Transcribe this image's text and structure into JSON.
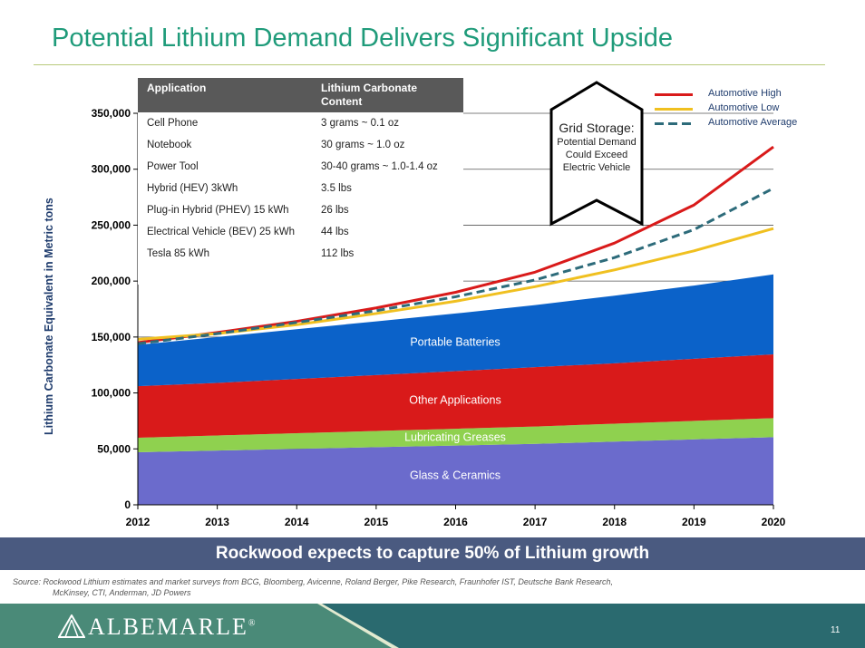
{
  "title": "Potential Lithium Demand Delivers Significant Upside",
  "chart_data": {
    "type": "area",
    "ylabel": "Lithium Carbonate Equivalent in Metric tons",
    "ylim": [
      0,
      350000
    ],
    "yticks": [
      0,
      50000,
      100000,
      150000,
      200000,
      250000,
      300000,
      350000
    ],
    "ytick_labels": [
      "0",
      "50,000",
      "100,000",
      "150,000",
      "200,000",
      "250,000",
      "300,000",
      "350,000"
    ],
    "x": [
      2012,
      2013,
      2014,
      2015,
      2016,
      2017,
      2018,
      2019,
      2020
    ],
    "x_labels": [
      "2012",
      "2013",
      "2014",
      "2015",
      "2016",
      "2017",
      "2018",
      "2019",
      "2020"
    ],
    "stacked_areas": [
      {
        "name": "Glass & Ceramics",
        "color": "#6b6bcc",
        "cumulative": [
          47000,
          48500,
          50000,
          51500,
          53000,
          54500,
          56500,
          58500,
          60500
        ]
      },
      {
        "name": "Lubricating Greases",
        "color": "#8fd14f",
        "cumulative": [
          60000,
          62000,
          64000,
          66000,
          68000,
          70000,
          72500,
          75000,
          77500
        ]
      },
      {
        "name": "Other Applications",
        "color": "#d91a1a",
        "cumulative": [
          106000,
          109000,
          112500,
          116000,
          119500,
          123000,
          126500,
          130500,
          134500
        ]
      },
      {
        "name": "Portable Batteries",
        "color": "#0b62c9",
        "cumulative": [
          143000,
          150000,
          157000,
          164000,
          171000,
          178500,
          187000,
          196000,
          206000
        ]
      }
    ],
    "lines": [
      {
        "name": "Automotive High",
        "color": "#d91a1a",
        "style": "solid",
        "values": [
          145000,
          154000,
          164000,
          176000,
          190000,
          208000,
          234000,
          268000,
          320000
        ]
      },
      {
        "name": "Automotive Low",
        "color": "#f0c020",
        "style": "solid",
        "values": [
          148000,
          153000,
          161000,
          171000,
          182000,
          195000,
          210000,
          227000,
          247000
        ]
      },
      {
        "name": "Automotive Average",
        "color": "#2d6b7a",
        "style": "dashed",
        "values": [
          144000,
          153000,
          163000,
          173500,
          186000,
          201000,
          221000,
          246000,
          283000
        ]
      }
    ],
    "legend_position": "top-right",
    "grid": "horizontal"
  },
  "table": {
    "headers": [
      "Application",
      "Lithium Carbonate Content"
    ],
    "rows": [
      [
        "Cell Phone",
        "3 grams ~ 0.1 oz"
      ],
      [
        "Notebook",
        "30 grams ~ 1.0 oz"
      ],
      [
        "Power Tool",
        "30-40 grams ~ 1.0-1.4 oz"
      ],
      [
        "Hybrid (HEV) 3kWh",
        "3.5 lbs"
      ],
      [
        "Plug-in Hybrid (PHEV) 15 kWh",
        "26 lbs"
      ],
      [
        "Electrical Vehicle (BEV) 25 kWh",
        "44 lbs"
      ],
      [
        "Tesla 85 kWh",
        "112 lbs"
      ]
    ]
  },
  "callout": {
    "title": "Grid Storage:",
    "body": "Potential Demand Could Exceed Electric Vehicle"
  },
  "banner": "Rockwood expects to capture 50% of Lithium growth",
  "source_line1": "Source: Rockwood Lithium estimates and market surveys from BCG, Bloomberg, Avicenne, Roland Berger, Pike Research, Fraunhofer IST, Deutsche Bank Research,",
  "source_line2": "McKinsey, CTI, Anderman, JD Powers",
  "logo": "ALBEMARLE",
  "logo_mark": "®",
  "page_number": "11",
  "colors": {
    "title": "#1f9b7a",
    "banner": "#4a5a80",
    "footer": "#2a6a6f"
  }
}
